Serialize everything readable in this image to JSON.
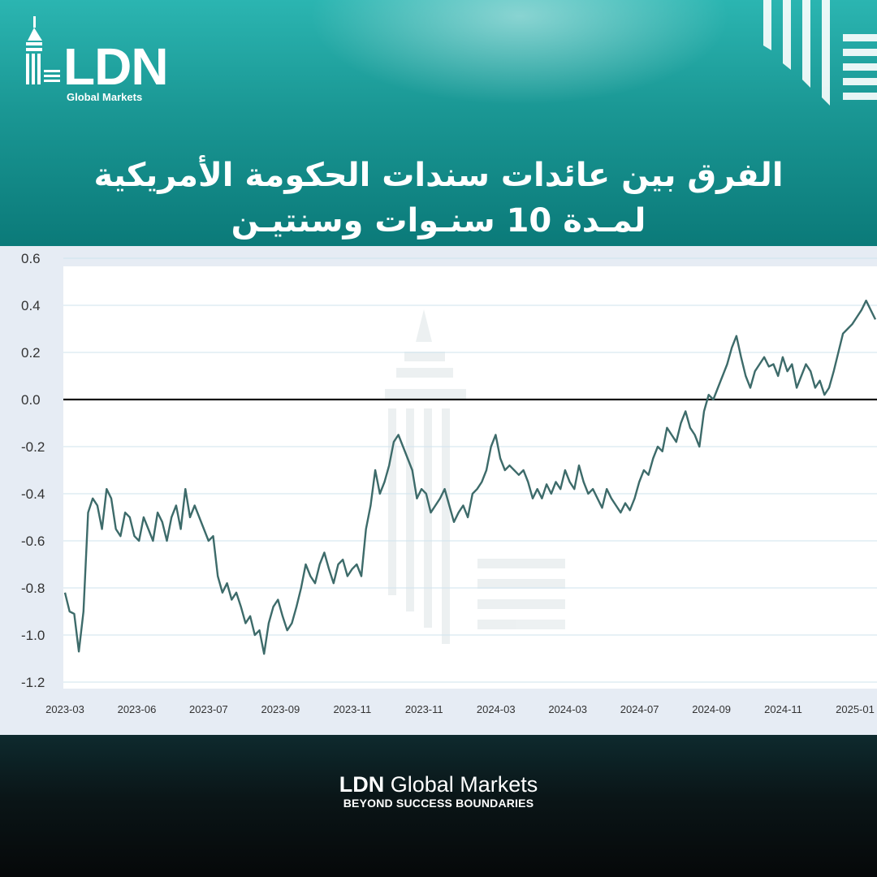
{
  "brand": {
    "logo_mark": "LDN",
    "logo_sub": "Global Markets",
    "footer_bold": "LDN",
    "footer_rest": "Global Markets",
    "tagline": "BEYOND SUCCESS BOUNDARIES",
    "colors": {
      "teal": "#1a9794",
      "line": "#3d6b6a",
      "zero_line": "#111111"
    }
  },
  "title": {
    "line1": "الفرق بين عائدات سندات الحكومة الأمريكية",
    "line2": "لمـدة 10 سنـوات وسنتيـن"
  },
  "chart_data": {
    "type": "line",
    "title": "",
    "xlabel": "",
    "ylabel": "",
    "ylim": [
      -1.2,
      0.6
    ],
    "yticks": [
      0.6,
      0.4,
      0.2,
      0.0,
      -0.2,
      -0.4,
      -0.6,
      -0.8,
      -1.0,
      -1.2
    ],
    "ytick_labels": [
      "0.6",
      "0.4",
      "0.2",
      "0.0",
      "-0.2",
      "-0.4",
      "-0.6",
      "-0.8",
      "-1.0",
      "-1.2"
    ],
    "xtick_labels": [
      "2023-03",
      "2023-06",
      "2023-07",
      "2023-09",
      "2023-11",
      "2023-11",
      "2024-03",
      "2024-03",
      "2024-07",
      "2024-09",
      "2024-11",
      "2025-01"
    ],
    "reference_line": 0.0,
    "grid": true,
    "series": [
      {
        "values": [
          -0.82,
          -0.9,
          -0.91,
          -1.07,
          -0.9,
          -0.48,
          -0.42,
          -0.45,
          -0.55,
          -0.38,
          -0.42,
          -0.55,
          -0.58,
          -0.48,
          -0.5,
          -0.58,
          -0.6,
          -0.5,
          -0.55,
          -0.6,
          -0.48,
          -0.52,
          -0.6,
          -0.5,
          -0.45,
          -0.55,
          -0.38,
          -0.5,
          -0.45,
          -0.5,
          -0.55,
          -0.6,
          -0.58,
          -0.75,
          -0.82,
          -0.78,
          -0.85,
          -0.82,
          -0.88,
          -0.95,
          -0.92,
          -1.0,
          -0.98,
          -1.08,
          -0.95,
          -0.88,
          -0.85,
          -0.92,
          -0.98,
          -0.95,
          -0.88,
          -0.8,
          -0.7,
          -0.75,
          -0.78,
          -0.7,
          -0.65,
          -0.72,
          -0.78,
          -0.7,
          -0.68,
          -0.75,
          -0.72,
          -0.7,
          -0.75,
          -0.55,
          -0.45,
          -0.3,
          -0.4,
          -0.35,
          -0.28,
          -0.18,
          -0.15,
          -0.2,
          -0.25,
          -0.3,
          -0.42,
          -0.38,
          -0.4,
          -0.48,
          -0.45,
          -0.42,
          -0.38,
          -0.45,
          -0.52,
          -0.48,
          -0.45,
          -0.5,
          -0.4,
          -0.38,
          -0.35,
          -0.3,
          -0.2,
          -0.15,
          -0.25,
          -0.3,
          -0.28,
          -0.3,
          -0.32,
          -0.3,
          -0.35,
          -0.42,
          -0.38,
          -0.42,
          -0.36,
          -0.4,
          -0.35,
          -0.38,
          -0.3,
          -0.35,
          -0.38,
          -0.28,
          -0.35,
          -0.4,
          -0.38,
          -0.42,
          -0.46,
          -0.38,
          -0.42,
          -0.45,
          -0.48,
          -0.44,
          -0.47,
          -0.42,
          -0.35,
          -0.3,
          -0.32,
          -0.25,
          -0.2,
          -0.22,
          -0.12,
          -0.15,
          -0.18,
          -0.1,
          -0.05,
          -0.12,
          -0.15,
          -0.2,
          -0.05,
          0.02,
          0.0,
          0.05,
          0.1,
          0.15,
          0.22,
          0.27,
          0.18,
          0.1,
          0.05,
          0.12,
          0.15,
          0.18,
          0.14,
          0.15,
          0.1,
          0.18,
          0.12,
          0.15,
          0.05,
          0.1,
          0.15,
          0.12,
          0.05,
          0.08,
          0.02,
          0.05,
          0.12,
          0.2,
          0.28,
          0.3,
          0.32,
          0.35,
          0.38,
          0.42,
          0.38,
          0.34
        ]
      }
    ]
  }
}
